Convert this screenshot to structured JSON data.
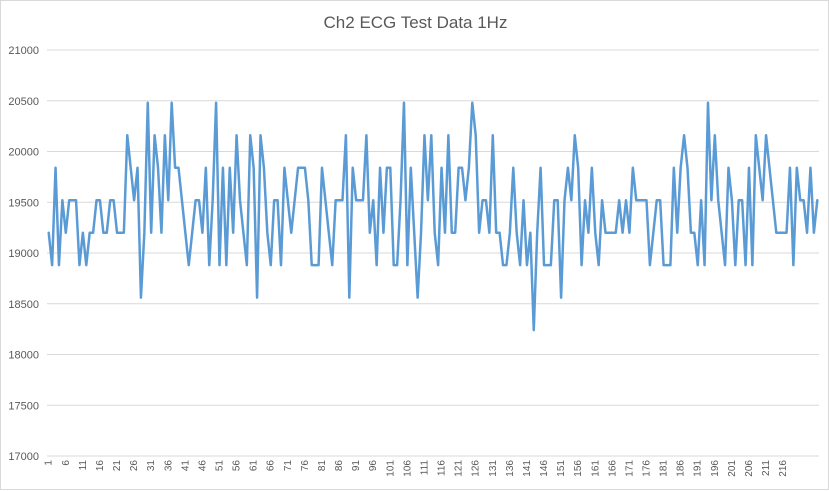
{
  "chart_data": {
    "type": "line",
    "title": "Ch2 ECG Test Data 1Hz",
    "xlabel": "",
    "ylabel": "",
    "ylim": [
      17000,
      21000
    ],
    "yticks": [
      17000,
      17500,
      18000,
      18500,
      19000,
      19500,
      20000,
      20500,
      21000
    ],
    "xticks": [
      1,
      6,
      11,
      16,
      21,
      26,
      31,
      36,
      41,
      46,
      51,
      56,
      61,
      66,
      71,
      76,
      81,
      86,
      91,
      96,
      101,
      106,
      111,
      116,
      121,
      126,
      131,
      136,
      141,
      146,
      151,
      156,
      161,
      166,
      171,
      176,
      181,
      186,
      191,
      196,
      201,
      206,
      211,
      216
    ],
    "grid": true,
    "legend": "none",
    "color": "#5b9bd5",
    "series": [
      {
        "values": [
          19200,
          18880,
          19840,
          18880,
          19520,
          19200,
          19520,
          19520,
          19520,
          18880,
          19200,
          18880,
          19200,
          19200,
          19520,
          19520,
          19200,
          19200,
          19520,
          19520,
          19200,
          19200,
          19200,
          20160,
          19840,
          19520,
          19840,
          18560,
          19200,
          20480,
          19200,
          20160,
          19840,
          19200,
          20160,
          19520,
          20480,
          19840,
          19840,
          19520,
          19200,
          18880,
          19200,
          19520,
          19520,
          19200,
          19840,
          18880,
          19520,
          20480,
          18880,
          19840,
          18880,
          19840,
          19200,
          20160,
          19520,
          19200,
          18880,
          20160,
          19840,
          18560,
          20160,
          19840,
          19200,
          18880,
          19520,
          19520,
          18880,
          19840,
          19520,
          19200,
          19520,
          19840,
          19840,
          19840,
          19520,
          18880,
          18880,
          18880,
          19840,
          19520,
          19200,
          18880,
          19520,
          19520,
          19520,
          20160,
          18560,
          19840,
          19520,
          19520,
          19520,
          20160,
          19200,
          19520,
          18880,
          19840,
          19200,
          19840,
          19840,
          18880,
          18880,
          19520,
          20480,
          18880,
          19840,
          19200,
          18560,
          19200,
          20160,
          19520,
          20160,
          19200,
          18880,
          19840,
          19200,
          20160,
          19200,
          19200,
          19840,
          19840,
          19520,
          19840,
          20480,
          20160,
          19200,
          19520,
          19520,
          19200,
          20160,
          19200,
          19200,
          18880,
          18880,
          19200,
          19840,
          19200,
          18880,
          19520,
          18880,
          19200,
          18240,
          19200,
          19840,
          18880,
          18880,
          18880,
          19520,
          19520,
          18560,
          19520,
          19840,
          19520,
          20160,
          19840,
          18880,
          19520,
          19200,
          19840,
          19200,
          18880,
          19520,
          19200,
          19200,
          19200,
          19200,
          19520,
          19200,
          19520,
          19200,
          19840,
          19520,
          19520,
          19520,
          19520,
          18880,
          19200,
          19520,
          19520,
          18880,
          18880,
          18880,
          19840,
          19200,
          19840,
          20160,
          19840,
          19200,
          19200,
          18880,
          19520,
          18880,
          20480,
          19520,
          20160,
          19520,
          19200,
          18880,
          19840,
          19520,
          18880,
          19520,
          19520,
          18880,
          19840,
          18880,
          20160,
          19840,
          19520,
          20160,
          19840,
          19520,
          19200,
          19200,
          19200,
          19200,
          19840,
          18880,
          19840,
          19520,
          19520,
          19200,
          19840,
          19200,
          19520
        ]
      }
    ]
  }
}
